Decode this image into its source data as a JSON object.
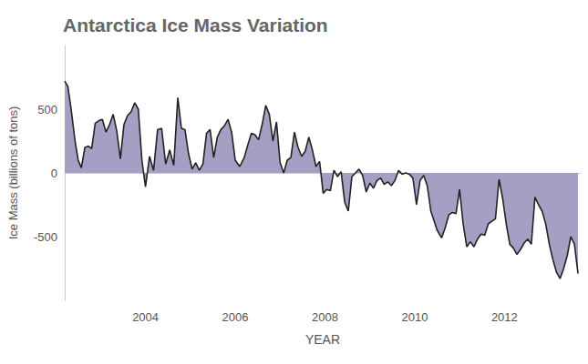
{
  "chart_data": {
    "type": "area",
    "title": "Antarctica Ice Mass Variation",
    "x_label": "YEAR",
    "y_label": "Ice Mass (billions of tons)",
    "x": [
      2002.2,
      2002.27,
      2002.35,
      2002.43,
      2002.5,
      2002.57,
      2002.65,
      2002.73,
      2002.8,
      2002.88,
      2002.96,
      2003.04,
      2003.12,
      2003.2,
      2003.28,
      2003.36,
      2003.44,
      2003.52,
      2003.6,
      2003.68,
      2003.76,
      2003.84,
      2003.92,
      2004.0,
      2004.09,
      2004.18,
      2004.27,
      2004.36,
      2004.45,
      2004.54,
      2004.63,
      2004.72,
      2004.8,
      2004.88,
      2004.96,
      2005.04,
      2005.12,
      2005.2,
      2005.28,
      2005.36,
      2005.44,
      2005.52,
      2005.6,
      2005.68,
      2005.76,
      2005.84,
      2005.92,
      2006.0,
      2006.1,
      2006.2,
      2006.28,
      2006.36,
      2006.44,
      2006.52,
      2006.6,
      2006.68,
      2006.76,
      2006.84,
      2006.92,
      2007.0,
      2007.08,
      2007.16,
      2007.24,
      2007.32,
      2007.4,
      2007.48,
      2007.56,
      2007.64,
      2007.72,
      2007.8,
      2007.88,
      2007.96,
      2008.04,
      2008.12,
      2008.2,
      2008.28,
      2008.36,
      2008.44,
      2008.52,
      2008.6,
      2008.68,
      2008.76,
      2008.84,
      2008.92,
      2009.0,
      2009.08,
      2009.16,
      2009.24,
      2009.32,
      2009.4,
      2009.48,
      2009.56,
      2009.64,
      2009.72,
      2009.8,
      2009.88,
      2009.96,
      2010.04,
      2010.12,
      2010.2,
      2010.28,
      2010.36,
      2010.5,
      2010.6,
      2010.68,
      2010.76,
      2010.84,
      2010.92,
      2011.0,
      2011.08,
      2011.16,
      2011.24,
      2011.32,
      2011.4,
      2011.48,
      2011.56,
      2011.64,
      2011.72,
      2011.8,
      2011.88,
      2011.96,
      2012.04,
      2012.12,
      2012.2,
      2012.28,
      2012.36,
      2012.44,
      2012.52,
      2012.6,
      2012.68,
      2012.76,
      2012.84,
      2012.92,
      2013.0,
      2013.08,
      2013.16,
      2013.24,
      2013.32,
      2013.4,
      2013.48,
      2013.56,
      2013.64
    ],
    "values": [
      720,
      680,
      480,
      250,
      100,
      40,
      200,
      210,
      190,
      390,
      410,
      420,
      320,
      380,
      460,
      330,
      110,
      380,
      450,
      480,
      550,
      500,
      100,
      -110,
      130,
      20,
      340,
      350,
      70,
      180,
      60,
      590,
      350,
      340,
      150,
      30,
      80,
      20,
      70,
      310,
      340,
      120,
      280,
      340,
      370,
      420,
      320,
      100,
      50,
      120,
      220,
      310,
      300,
      260,
      380,
      530,
      460,
      250,
      400,
      80,
      0,
      100,
      120,
      320,
      200,
      130,
      170,
      280,
      180,
      50,
      90,
      -160,
      -130,
      -140,
      20,
      -30,
      10,
      -230,
      -300,
      -30,
      0,
      30,
      -20,
      -150,
      -80,
      -120,
      -60,
      -40,
      -90,
      -70,
      -100,
      -60,
      20,
      -10,
      0,
      -10,
      -40,
      -250,
      -60,
      -20,
      -100,
      -300,
      -450,
      -510,
      -430,
      -330,
      -310,
      -320,
      -130,
      -400,
      -580,
      -540,
      -580,
      -520,
      -480,
      -490,
      -400,
      -380,
      -360,
      -50,
      -200,
      -400,
      -560,
      -590,
      -640,
      -600,
      -550,
      -520,
      -560,
      -190,
      -250,
      -300,
      -400,
      -560,
      -680,
      -780,
      -830,
      -750,
      -650,
      -500,
      -560,
      -790
    ],
    "color": "#a69fc4",
    "xlim": [
      2002.2,
      2013.7
    ],
    "xticks": [
      2004,
      2006,
      2008,
      2010,
      2012
    ],
    "ylim": [
      -1000,
      1000
    ],
    "yticks": [
      -500,
      0,
      500
    ],
    "grid": false
  }
}
